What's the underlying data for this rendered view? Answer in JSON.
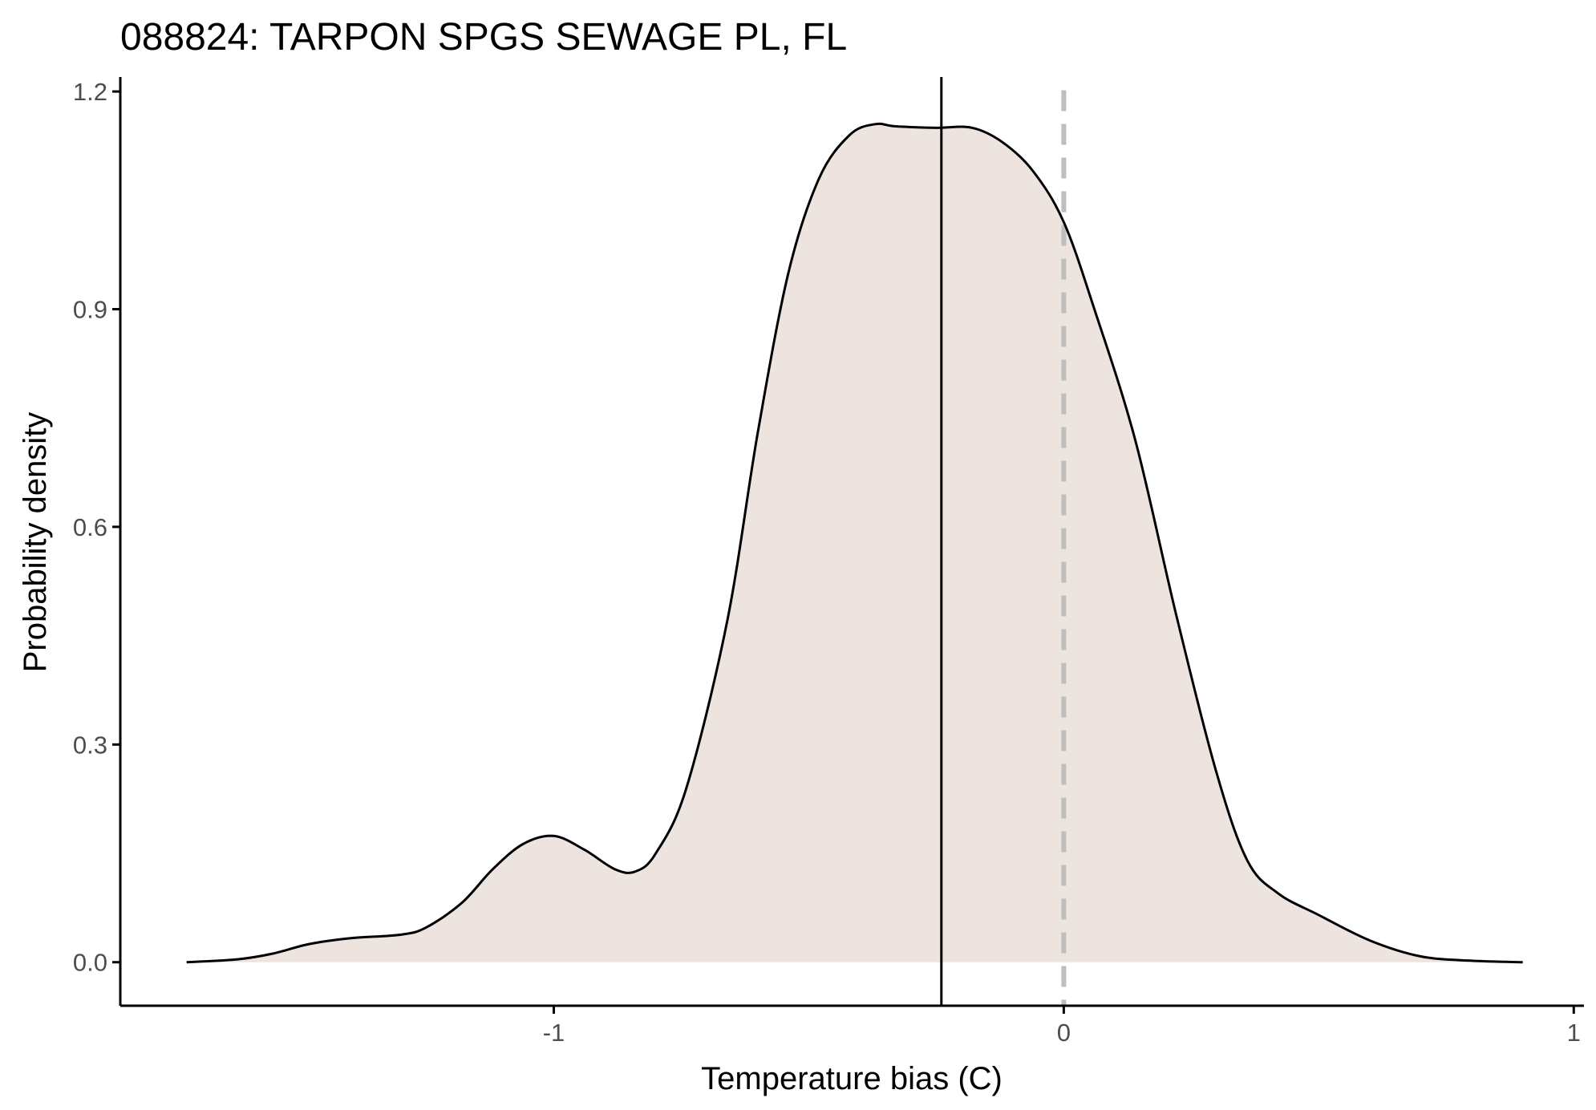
{
  "chart_data": {
    "type": "area",
    "title": "088824: TARPON SPGS SEWAGE PL, FL",
    "xlabel": "Temperature bias (C)",
    "ylabel": "Probability density",
    "xlim": [
      -1.85,
      1.02
    ],
    "ylim": [
      -0.06,
      1.22
    ],
    "x_ticks": [
      -1,
      0,
      1
    ],
    "x_tick_labels": [
      "-1",
      "0",
      "1"
    ],
    "y_ticks": [
      0.0,
      0.3,
      0.6,
      0.9,
      1.2
    ],
    "y_tick_labels": [
      "0.0",
      "0.3",
      "0.6",
      "0.9",
      "1.2"
    ],
    "fill_color": "#ede3df",
    "line_color": "#000000",
    "density": {
      "x": [
        -1.72,
        -1.62,
        -1.55,
        -1.48,
        -1.4,
        -1.3,
        -1.25,
        -1.18,
        -1.12,
        -1.06,
        -1.0,
        -0.94,
        -0.88,
        -0.84,
        -0.8,
        -0.74,
        -0.66,
        -0.6,
        -0.54,
        -0.48,
        -0.42,
        -0.37,
        -0.33,
        -0.25,
        -0.18,
        -0.12,
        -0.06,
        0.0,
        0.06,
        0.14,
        0.22,
        0.3,
        0.36,
        0.42,
        0.5,
        0.6,
        0.7,
        0.8,
        0.9
      ],
      "y": [
        0.0,
        0.004,
        0.012,
        0.025,
        0.033,
        0.038,
        0.048,
        0.082,
        0.128,
        0.163,
        0.174,
        0.155,
        0.128,
        0.125,
        0.15,
        0.24,
        0.47,
        0.73,
        0.95,
        1.08,
        1.14,
        1.155,
        1.152,
        1.15,
        1.15,
        1.13,
        1.09,
        1.02,
        0.9,
        0.72,
        0.48,
        0.26,
        0.14,
        0.095,
        0.065,
        0.03,
        0.008,
        0.002,
        0.0
      ]
    },
    "vlines": [
      {
        "name": "estimate",
        "x": -0.24,
        "style": "solid",
        "color": "#000000"
      },
      {
        "name": "zero-reference",
        "x": 0.0,
        "style": "dashed",
        "color": "#bebebe"
      }
    ]
  }
}
